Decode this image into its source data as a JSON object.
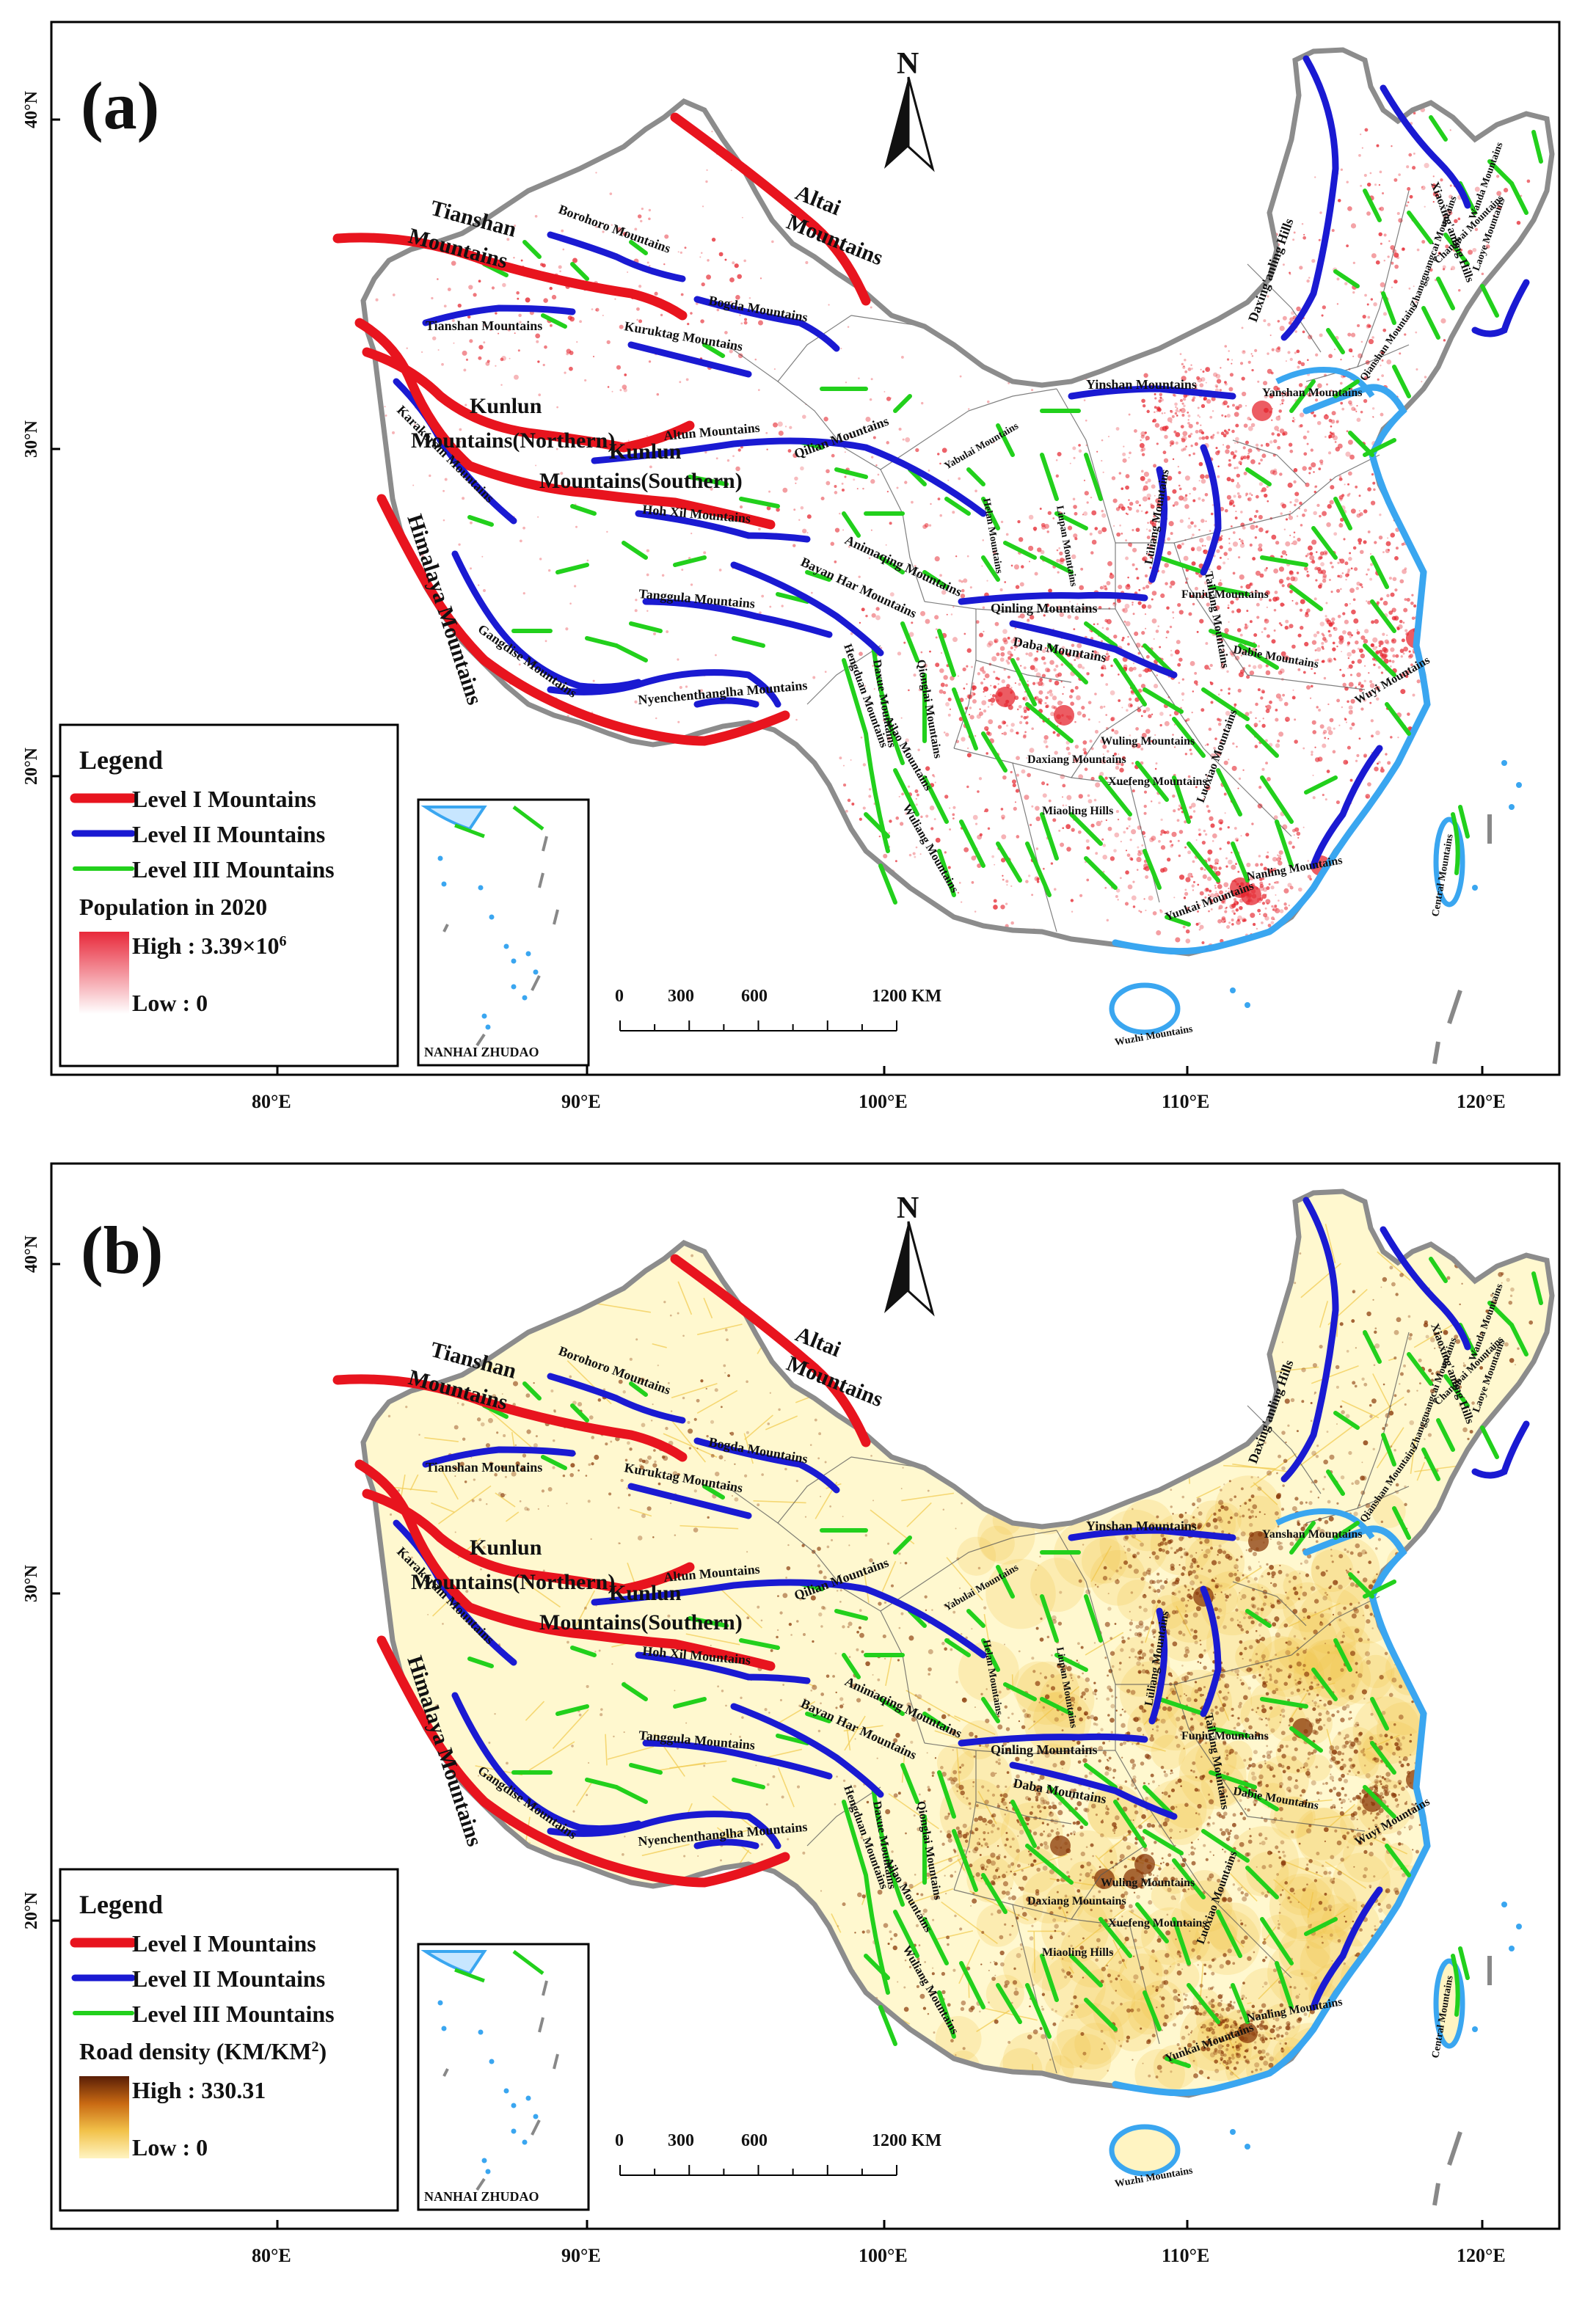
{
  "panels": [
    {
      "letter": "(a)",
      "theme": "population",
      "legend": {
        "title": "Legend",
        "level1": "Level I Mountains",
        "level2": "Level II Mountains",
        "level3": "Level III Mountains",
        "layer_title": "Population in 2020",
        "high_prefix": "High : 3.39×10",
        "high_sup": "6",
        "low": "Low : 0"
      },
      "gradient_colors": [
        "#e8283a",
        "#ffffff"
      ],
      "dot_color": "#e5262f"
    },
    {
      "letter": "(b)",
      "theme": "road",
      "legend": {
        "title": "Legend",
        "level1": "Level I Mountains",
        "level2": "Level II Mountains",
        "level3": "Level III Mountains",
        "layer_title": "Road density (KM/KM",
        "layer_sup": "2",
        "layer_close": ")",
        "high_prefix": "High : 330.31",
        "high_sup": "",
        "low": "Low : 0"
      },
      "gradient_colors": [
        "#5a1e06",
        "#c96a13",
        "#f2c24a",
        "#fff4c2"
      ],
      "dot_color": "#8a3a0a"
    }
  ],
  "common": {
    "north": "N",
    "inset_title": "NANHAI ZHUDAO",
    "scale": {
      "ticks": [
        "0",
        "300",
        "600",
        "1200 KM"
      ]
    },
    "lon_ticks": [
      "80°E",
      "90°E",
      "100°E",
      "110°E",
      "120°E"
    ],
    "lat_ticks": [
      "40°N",
      "30°N",
      "20°N"
    ],
    "colors": {
      "level1": "#e8141e",
      "level2": "#1a1ad2",
      "level3": "#22d01c",
      "coast": "#3aa6f0",
      "border": "#8c8c8c"
    },
    "labels": {
      "altai": [
        "Altai",
        "Mountains"
      ],
      "tianshan": [
        "Tianshan",
        "Mountains"
      ],
      "kunlun_n": [
        "Kunlun",
        "Mountains(Northern)"
      ],
      "kunlun_s": [
        "Kunlun",
        "Mountains(Southern)"
      ],
      "himalaya": "Himalaya Mountains",
      "borohoro": "Borohoro Mountains",
      "bogda": "Bogda Mountains",
      "kuruktag": "Kuruktag Mountains",
      "tianshan_small": "Tianshan Mountains",
      "altun": "Altun Mountains",
      "karakoram": "Karakoram Mountains",
      "qilian": "Qilian Mountains",
      "hohxil": "Hoh Xil Mountains",
      "tanggula": "Tanggula Mountains",
      "gangdise": "Gangdise Mountains",
      "nyenchen": "Nyenchenthanglha Mountains",
      "bayan": "Bayan Har Mountains",
      "animaqing": "Animaqing Mountains",
      "qinling": "Qinling Mountains",
      "daba": "Daba Mountains",
      "yinshan": "Yinshan Mountains",
      "daxinganling": "Daxing'anling Hills",
      "xiaoxinganling": "Xiaoxing'anling Hills",
      "changbai": "Changbai Mountains",
      "zhangguangcai": "Zhangguangcai Mountains",
      "wanda": "Wanda Mountains",
      "laoye": "Laoye Mountains",
      "qianshan": "Qianshan Mountains",
      "yanshan": "Yanshan Mountains",
      "taihang": "Taihang Mountains",
      "luliang": "Lüliang Mountains",
      "funiu": "Funiu Mountains",
      "dabie": "Dabie Mountains",
      "wuyi": "Wuyi Mountains",
      "nanling": "Nanling Mountains",
      "xuefeng": "Xuefeng Mountains",
      "wuling": "Wuling Mountains",
      "miaoling": "Miaoling Hills",
      "daxiang": "Daxiang Mountains",
      "hengduan": "Hengduan Mountains",
      "ailao": "Ailao Mountains",
      "wuliang": "Wuliang Mountains",
      "central": "Central Mountains",
      "wuzhi": "Wuzhi Mountains",
      "daxue": "Daxue Mountains",
      "qionglai": "Qionglai Mountains",
      "luoxiao": "Luoxiao Mountains",
      "yunkai": "Yunkai Mountains",
      "liupan": "Liupan Mountains",
      "helan": "Helan Mountains",
      "yabulai": "Yabulai Mountains"
    }
  }
}
